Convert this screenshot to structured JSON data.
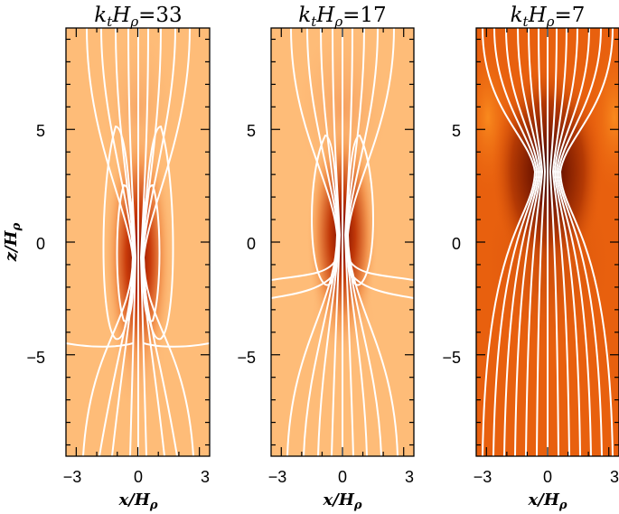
{
  "chart_data": [
    {
      "type": "heatmap",
      "title": "k_tH_ρ=33",
      "title_parts": {
        "k": "k",
        "k_sub": "t",
        "H": "H",
        "H_sub": "ρ",
        "eq": "=33"
      },
      "xlabel": "x/H_ρ",
      "ylabel": "z/H_ρ",
      "xlim": [
        -3.5,
        3.5
      ],
      "ylim": [
        -9.5,
        9.5
      ],
      "xticks": [
        "−3",
        "0",
        "3"
      ],
      "yticks": [],
      "field_lines": "white",
      "background_color": "#FEBC78",
      "peak_color": "#7A0A00",
      "core_center_z": -0.5
    },
    {
      "type": "heatmap",
      "title": "k_tH_ρ=17",
      "title_parts": {
        "k": "k",
        "k_sub": "t",
        "H": "H",
        "H_sub": "ρ",
        "eq": "=17"
      },
      "xlabel": "x/H_ρ",
      "ylabel": "",
      "xlim": [
        -3.5,
        3.5
      ],
      "ylim": [
        -9.5,
        9.5
      ],
      "xticks": [
        "−3",
        "0",
        "3"
      ],
      "yticks": [
        "5",
        "0",
        "−5"
      ],
      "field_lines": "white",
      "background_color": "#FEBC78",
      "peak_color": "#7A0A00",
      "core_center_z": 0.5
    },
    {
      "type": "heatmap",
      "title": "k_tH_ρ=7",
      "title_parts": {
        "k": "k",
        "k_sub": "t",
        "H": "H",
        "H_sub": "ρ",
        "eq": "=7"
      },
      "xlabel": "x/H_ρ",
      "ylabel": "",
      "xlim": [
        -3.5,
        3.5
      ],
      "ylim": [
        -9.5,
        9.5
      ],
      "xticks": [
        "−3",
        "0",
        "3"
      ],
      "yticks": [
        "5",
        "0",
        "−5"
      ],
      "field_lines": "white",
      "background_color": "#E8600E",
      "peak_color": "#3A0600",
      "core_center_z": 3.0
    }
  ],
  "shared_yticks": [
    "5",
    "0",
    "−5"
  ],
  "shared_ylabel": "z/H_ρ",
  "ytick_values": [
    5,
    0,
    -5
  ],
  "xtick_values": [
    -3,
    0,
    3
  ]
}
